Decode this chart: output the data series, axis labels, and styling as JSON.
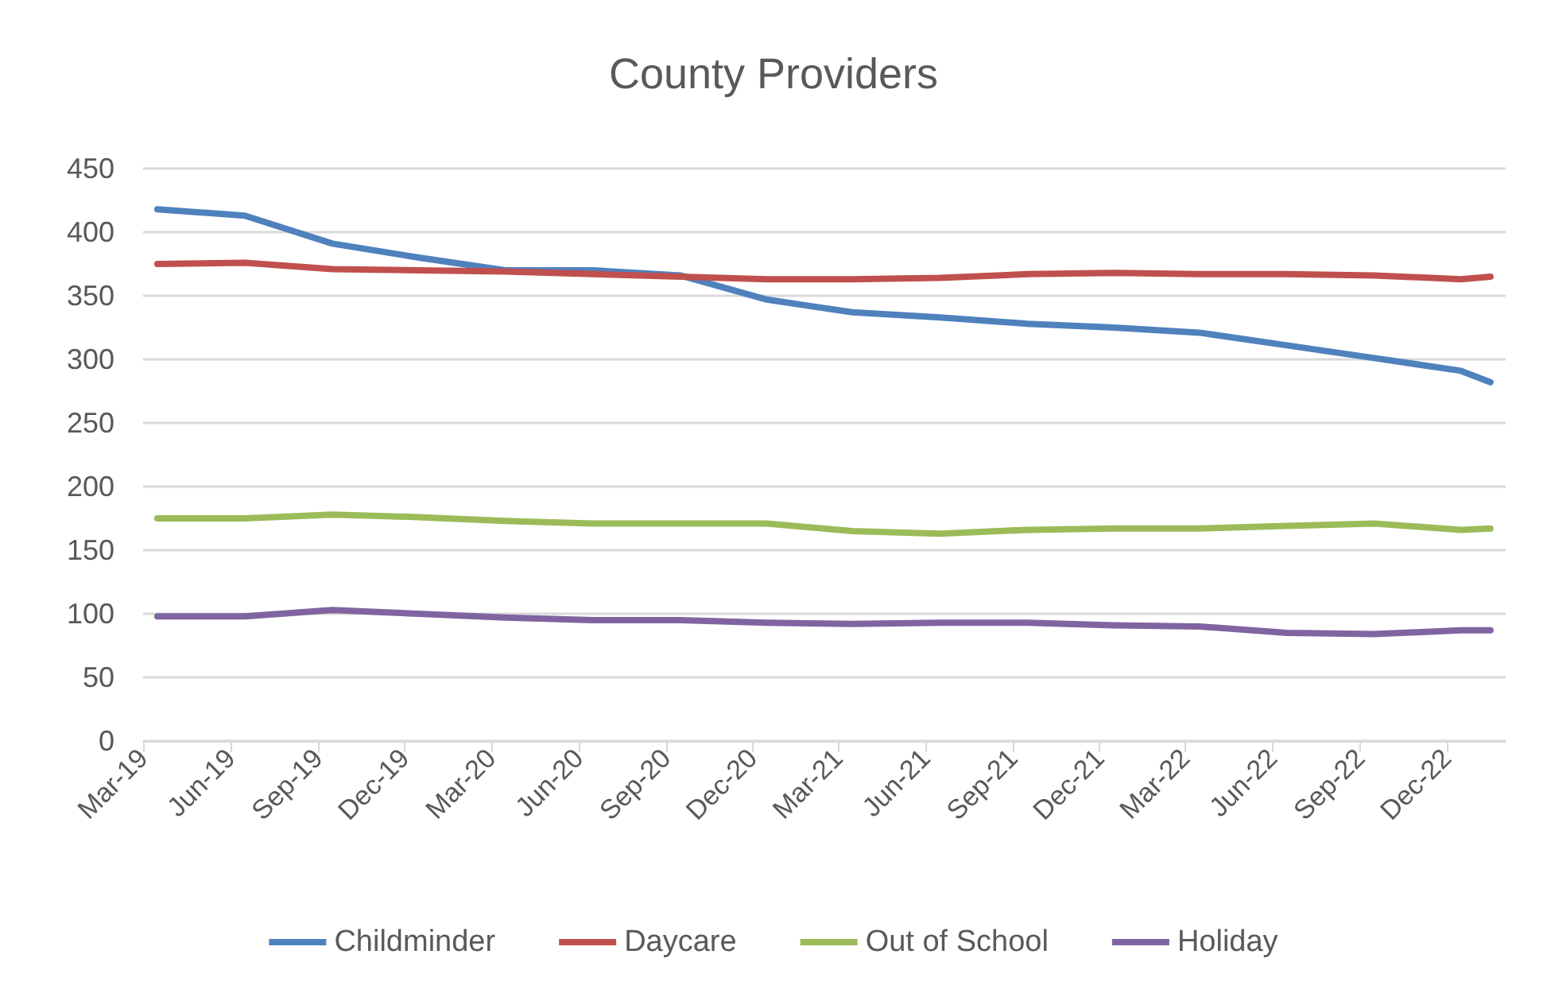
{
  "chart_data": {
    "type": "line",
    "title": "County Providers",
    "x": [
      "2019-03-16",
      "2019-06-16",
      "2019-09-16",
      "2019-12-16",
      "2020-03-16",
      "2020-06-16",
      "2020-09-16",
      "2020-12-16",
      "2021-03-16",
      "2021-06-16",
      "2021-09-16",
      "2021-12-16",
      "2022-03-16",
      "2022-06-16",
      "2022-09-16",
      "2022-12-16",
      "2023-01-16"
    ],
    "series": [
      {
        "name": "Childminder",
        "color": "#4f81bd",
        "values": [
          418,
          413,
          391,
          380,
          370,
          370,
          366,
          347,
          337,
          333,
          328,
          325,
          321,
          311,
          301,
          291,
          282
        ]
      },
      {
        "name": "Daycare",
        "color": "#c0504d",
        "values": [
          375,
          376,
          371,
          370,
          369,
          367,
          365,
          363,
          363,
          364,
          367,
          368,
          367,
          367,
          366,
          363,
          365
        ]
      },
      {
        "name": "Out of School",
        "color": "#9bbb59",
        "values": [
          175,
          175,
          178,
          176,
          173,
          171,
          171,
          171,
          165,
          163,
          166,
          167,
          167,
          169,
          171,
          166,
          167
        ]
      },
      {
        "name": "Holiday",
        "color": "#8064a2",
        "values": [
          98,
          98,
          103,
          100,
          97,
          95,
          95,
          93,
          92,
          93,
          93,
          91,
          90,
          85,
          84,
          87,
          87
        ]
      }
    ],
    "xlim": [
      "2019-03-01",
      "2023-02-01"
    ],
    "xticks": [
      {
        "value": "2019-03-01",
        "label": "Mar-19"
      },
      {
        "value": "2019-06-01",
        "label": "Jun-19"
      },
      {
        "value": "2019-09-01",
        "label": "Sep-19"
      },
      {
        "value": "2019-12-01",
        "label": "Dec-19"
      },
      {
        "value": "2020-03-01",
        "label": "Mar-20"
      },
      {
        "value": "2020-06-01",
        "label": "Jun-20"
      },
      {
        "value": "2020-09-01",
        "label": "Sep-20"
      },
      {
        "value": "2020-12-01",
        "label": "Dec-20"
      },
      {
        "value": "2021-03-01",
        "label": "Mar-21"
      },
      {
        "value": "2021-06-01",
        "label": "Jun-21"
      },
      {
        "value": "2021-09-01",
        "label": "Sep-21"
      },
      {
        "value": "2021-12-01",
        "label": "Dec-21"
      },
      {
        "value": "2022-03-01",
        "label": "Mar-22"
      },
      {
        "value": "2022-06-01",
        "label": "Jun-22"
      },
      {
        "value": "2022-09-01",
        "label": "Sep-22"
      },
      {
        "value": "2022-12-01",
        "label": "Dec-22"
      }
    ],
    "ylim": [
      0,
      450
    ],
    "yticks": [
      0,
      50,
      100,
      150,
      200,
      250,
      300,
      350,
      400,
      450
    ],
    "grid": "y",
    "legend": "bottom",
    "marker": "none",
    "line_style": "solid"
  }
}
